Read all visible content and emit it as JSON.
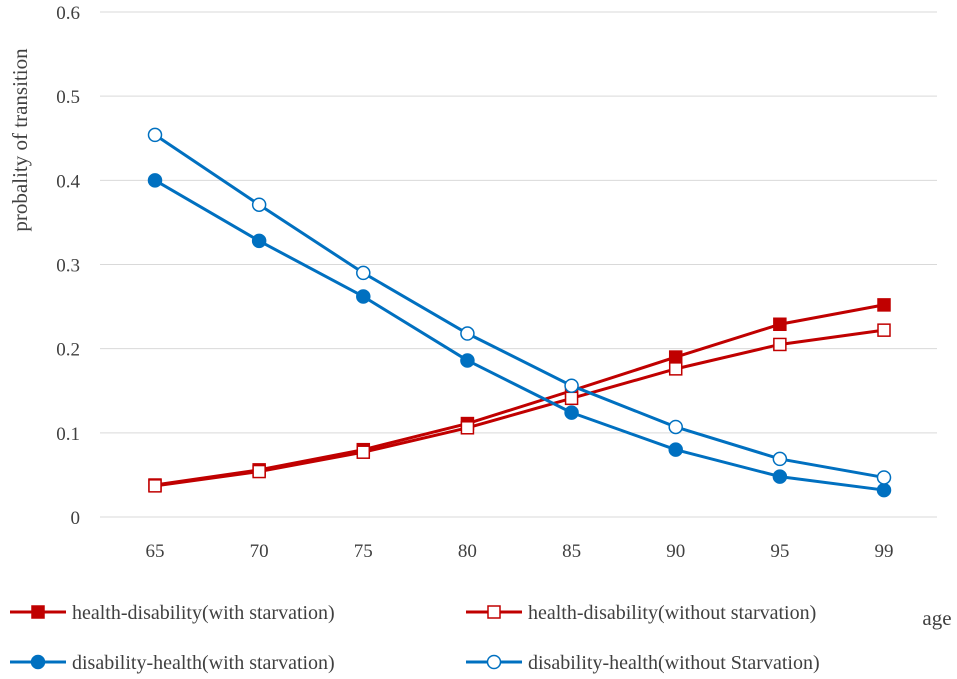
{
  "chart_data": {
    "type": "line",
    "title": "",
    "xlabel": "age",
    "ylabel": "probality of transition",
    "categories": [
      "65",
      "70",
      "75",
      "80",
      "85",
      "90",
      "95",
      "99"
    ],
    "ylim": [
      0,
      0.6
    ],
    "yticks": [
      "0",
      "0.1",
      "0.2",
      "0.3",
      "0.4",
      "0.5",
      "0.6"
    ],
    "grid": true,
    "legend_position": "bottom",
    "series": [
      {
        "name": "health-disability(with starvation)",
        "color": "#c00000",
        "marker": "square-filled",
        "values": [
          0.038,
          0.056,
          0.08,
          0.111,
          0.15,
          0.19,
          0.229,
          0.252
        ]
      },
      {
        "name": "health-disability(without starvation)",
        "color": "#c00000",
        "marker": "square-open",
        "values": [
          0.037,
          0.054,
          0.077,
          0.106,
          0.141,
          0.176,
          0.205,
          0.222
        ]
      },
      {
        "name": "disability-health(with starvation)",
        "color": "#0070c0",
        "marker": "circle-filled",
        "values": [
          0.4,
          0.328,
          0.262,
          0.186,
          0.124,
          0.08,
          0.048,
          0.032
        ]
      },
      {
        "name": "disability-health(without Starvation)",
        "color": "#0070c0",
        "marker": "circle-open",
        "values": [
          0.454,
          0.371,
          0.29,
          0.218,
          0.156,
          0.107,
          0.069,
          0.047
        ]
      }
    ]
  }
}
